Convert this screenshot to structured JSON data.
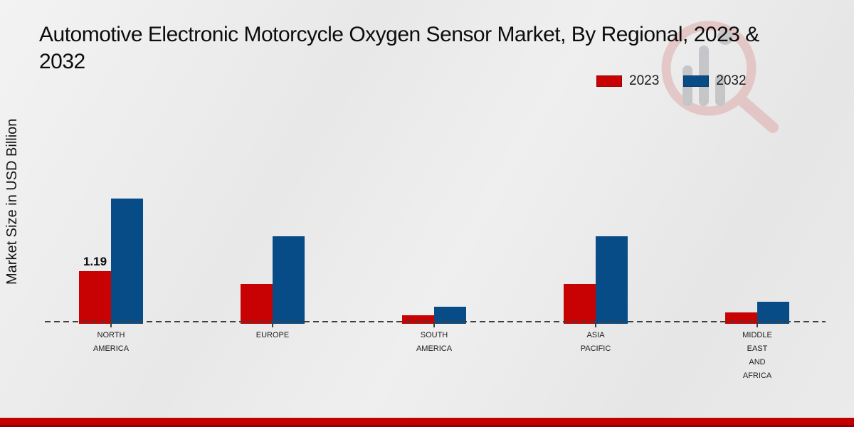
{
  "header": {
    "title_line1": "Automotive Electronic Motorcycle Oxygen Sensor Market, By Regional, 2023 &",
    "title_line2": "2032"
  },
  "y_axis_label": "Market Size in USD Billion",
  "legend": {
    "position": "top-right",
    "items": [
      {
        "label": "2023",
        "color": "#c80202"
      },
      {
        "label": "2032",
        "color": "#084c87"
      }
    ]
  },
  "chart_data": {
    "type": "bar",
    "title": "Automotive Electronic Motorcycle Oxygen Sensor Market, By Regional, 2023 & 2032",
    "xlabel": "",
    "ylabel": "Market Size in USD Billion",
    "categories": [
      "North America",
      "Europe",
      "South America",
      "Asia Pacific",
      "Middle East and Africa"
    ],
    "category_tick_lines": [
      [
        "NORTH",
        "AMERICA"
      ],
      [
        "EUROPE"
      ],
      [
        "SOUTH",
        "AMERICA"
      ],
      [
        "ASIA",
        "PACIFIC"
      ],
      [
        "MIDDLE",
        "EAST",
        "AND",
        "AFRICA"
      ]
    ],
    "series": [
      {
        "name": "2023",
        "color": "#c80202",
        "values": [
          1.19,
          0.88,
          0.15,
          0.88,
          0.21
        ]
      },
      {
        "name": "2032",
        "color": "#084c87",
        "values": [
          2.88,
          2.0,
          0.35,
          2.0,
          0.46
        ]
      }
    ],
    "annotations": [
      {
        "series": "2023",
        "category": "North America",
        "text": "1.19"
      }
    ],
    "ylim": [
      0,
      3.2
    ],
    "grid": false,
    "baseline_style": "dashed",
    "legend_position": "top-right"
  },
  "watermark": {
    "name": "market-research-future-logo"
  },
  "footer": {
    "bar_color": "#c30000",
    "bar_dark_color": "#8e0101"
  }
}
